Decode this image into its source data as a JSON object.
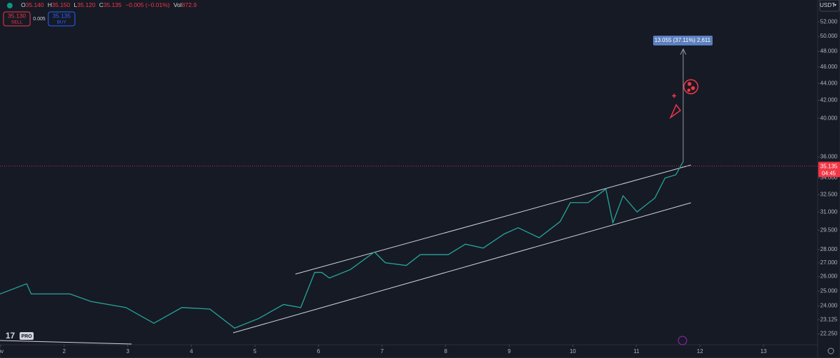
{
  "header": {
    "open_label": "O",
    "open": "35.140",
    "high_label": "H",
    "high": "35.150",
    "low_label": "L",
    "low": "35.120",
    "close_label": "C",
    "close": "35.135",
    "change": "−0.005 (−0.01%)",
    "volume_label": "Vol",
    "volume": "872.9"
  },
  "trade": {
    "sell_price": "35.130",
    "sell": "SELL",
    "spread": "0.005",
    "buy_price": "35.135",
    "buy": "BUY"
  },
  "currency": "USDT",
  "logo": "PRO",
  "measure": "13.055 (37.11%) 2,611",
  "chart_data": {
    "type": "line",
    "log_scale": true,
    "color": "#26a69a",
    "x": [
      0.99,
      1.41,
      1.48,
      2.09,
      2.42,
      2.97,
      3.41,
      3.85,
      4.29,
      4.68,
      5.06,
      5.45,
      5.72,
      5.94,
      6.05,
      6.17,
      6.5,
      6.88,
      7.05,
      7.38,
      7.6,
      8.04,
      8.31,
      8.59,
      8.92,
      9.14,
      9.47,
      9.8,
      9.96,
      10.24,
      10.52,
      10.63,
      10.79,
      11.01,
      11.29,
      11.45,
      11.62,
      11.73
    ],
    "values": [
      24.8,
      25.5,
      24.8,
      24.8,
      24.3,
      23.9,
      22.9,
      23.9,
      23.8,
      22.6,
      23.2,
      24.1,
      23.9,
      26.3,
      26.3,
      25.9,
      26.5,
      27.8,
      27.0,
      26.8,
      27.6,
      27.6,
      28.4,
      28.1,
      29.2,
      29.7,
      28.9,
      30.2,
      31.8,
      31.8,
      33.0,
      30.1,
      32.4,
      31.0,
      32.2,
      34.0,
      34.3,
      35.5
    ],
    "xlim": [
      0.99,
      13.85
    ],
    "xticks": [
      {
        "value": 1,
        "label": "ov"
      },
      2,
      3,
      4,
      5,
      6,
      7,
      8,
      9,
      10,
      11,
      12,
      13
    ],
    "ylim": [
      21.6,
      55.2
    ],
    "yticks": [
      {
        "value": 52,
        "label": "52.000"
      },
      {
        "value": 50,
        "label": "50.000"
      },
      {
        "value": 48,
        "label": "48.000"
      },
      {
        "value": 46,
        "label": "46.000"
      },
      {
        "value": 44,
        "label": "44.000"
      },
      {
        "value": 42,
        "label": "42.000"
      },
      {
        "value": 40,
        "label": "40.000"
      },
      {
        "value": 36,
        "label": "36.000"
      },
      {
        "value": 34,
        "label": "34.000"
      },
      {
        "value": 32.5,
        "label": "32.500"
      },
      {
        "value": 31,
        "label": "31.000"
      },
      {
        "value": 29.5,
        "label": "29.500"
      },
      {
        "value": 28,
        "label": "28.000"
      },
      {
        "value": 27,
        "label": "27.000"
      },
      {
        "value": 26,
        "label": "26.000"
      },
      {
        "value": 25,
        "label": "25.000"
      },
      {
        "value": 24,
        "label": "24.000"
      },
      {
        "value": 23.125,
        "label": "23.125"
      },
      {
        "value": 22.25,
        "label": "22.250"
      }
    ],
    "last_price": {
      "value": 35.135,
      "label": "35.135"
    },
    "countdown": "04:45"
  }
}
